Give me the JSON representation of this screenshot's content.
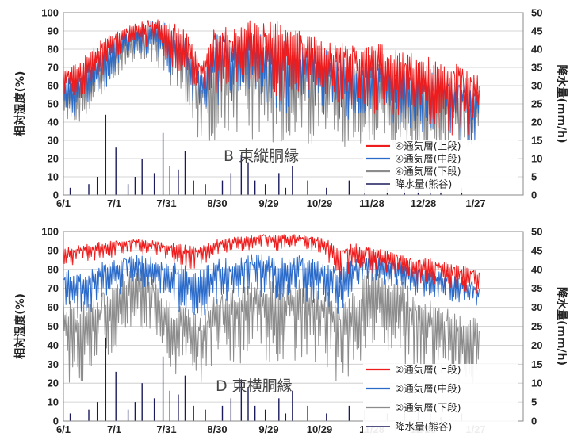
{
  "chart_data": [
    {
      "type": "line",
      "panel": "B",
      "annotation": "B 東縦胴縁",
      "ylabel": "相対湿度(%)",
      "y2label": "降水量(mm/h)",
      "x_ticks": [
        "6/1",
        "7/1",
        "7/31",
        "8/30",
        "9/29",
        "10/29",
        "11/28",
        "12/28",
        "1/27"
      ],
      "ylim": [
        0,
        100
      ],
      "y_ticks": [
        "0",
        "10",
        "20",
        "30",
        "40",
        "50",
        "60",
        "70",
        "80",
        "90",
        "100"
      ],
      "y2lim": [
        0,
        50
      ],
      "y2_ticks": [
        "0",
        "5",
        "10",
        "15",
        "20",
        "25",
        "30",
        "35",
        "40",
        "45",
        "50"
      ],
      "grid": true,
      "legend_position": "lower-right",
      "series": [
        {
          "name": "④通気層(上段)",
          "color": "#ee1c1c",
          "axis": "left",
          "upper": [
            70,
            74,
            82,
            88,
            92,
            95,
            97,
            96,
            90,
            72,
            95,
            90,
            96,
            94,
            96,
            92,
            88,
            86,
            84,
            82,
            84,
            82,
            80,
            77,
            76,
            74,
            72,
            66
          ],
          "lower": [
            55,
            50,
            60,
            68,
            80,
            82,
            80,
            70,
            60,
            56,
            52,
            56,
            62,
            58,
            52,
            50,
            54,
            50,
            48,
            46,
            44,
            44,
            40,
            38,
            36,
            32,
            30,
            30
          ]
        },
        {
          "name": "④通気層(中段)",
          "color": "#2a6ac9",
          "axis": "left",
          "upper": [
            64,
            68,
            76,
            84,
            90,
            94,
            96,
            94,
            86,
            66,
            92,
            86,
            90,
            88,
            88,
            84,
            80,
            80,
            78,
            74,
            76,
            74,
            72,
            70,
            68,
            66,
            64,
            60
          ],
          "lower": [
            46,
            42,
            52,
            60,
            74,
            78,
            74,
            64,
            52,
            48,
            46,
            50,
            56,
            52,
            46,
            44,
            48,
            44,
            42,
            40,
            40,
            40,
            36,
            34,
            32,
            30,
            28,
            28
          ]
        },
        {
          "name": "④通気層(下段)",
          "color": "#8c8c8c",
          "axis": "left",
          "upper": [
            60,
            62,
            70,
            80,
            88,
            92,
            94,
            92,
            84,
            64,
            92,
            84,
            90,
            88,
            88,
            84,
            80,
            78,
            76,
            72,
            74,
            72,
            70,
            68,
            66,
            64,
            62,
            60
          ],
          "lower": [
            42,
            40,
            48,
            56,
            70,
            74,
            70,
            60,
            48,
            24,
            28,
            30,
            32,
            28,
            26,
            34,
            28,
            24,
            26,
            28,
            24,
            30,
            22,
            24,
            22,
            20,
            20,
            20
          ]
        },
        {
          "name": "降水量(熊谷)",
          "color": "#1a1a5c",
          "axis": "right",
          "events": [
            [
              4,
              2
            ],
            [
              15,
              3
            ],
            [
              20,
              5
            ],
            [
              25,
              22
            ],
            [
              31,
              13
            ],
            [
              38,
              3
            ],
            [
              42,
              5
            ],
            [
              46,
              10
            ],
            [
              53,
              6
            ],
            [
              58,
              17
            ],
            [
              62,
              8
            ],
            [
              67,
              7
            ],
            [
              71,
              12
            ],
            [
              76,
              4
            ],
            [
              83,
              3
            ],
            [
              93,
              4
            ],
            [
              98,
              6
            ],
            [
              104,
              11
            ],
            [
              108,
              9
            ],
            [
              112,
              4
            ],
            [
              118,
              3
            ],
            [
              126,
              6
            ],
            [
              130,
              2
            ],
            [
              134,
              8
            ],
            [
              143,
              4
            ],
            [
              154,
              2
            ],
            [
              167,
              4
            ],
            [
              176,
              3
            ],
            [
              189,
              2
            ],
            [
              199,
              3
            ],
            [
              207,
              4
            ],
            [
              214,
              2
            ],
            [
              220,
              1
            ],
            [
              232,
              2
            ]
          ]
        }
      ]
    },
    {
      "type": "line",
      "panel": "D",
      "annotation": "D 東横胴縁",
      "ylabel": "相対湿度(%)",
      "y2label": "降水量(mm/h)",
      "x_ticks": [
        "6/1",
        "7/1",
        "7/31",
        "8/30",
        "9/29",
        "10/29",
        "11/28",
        "12/28",
        "1/27"
      ],
      "ylim": [
        0,
        100
      ],
      "y_ticks": [
        "0",
        "10",
        "20",
        "30",
        "40",
        "50",
        "60",
        "70",
        "80",
        "90",
        "100"
      ],
      "y2lim": [
        0,
        50
      ],
      "y2_ticks": [
        "0",
        "5",
        "10",
        "15",
        "20",
        "25",
        "30",
        "35",
        "40",
        "45",
        "50"
      ],
      "grid": true,
      "legend_position": "lower-right",
      "series": [
        {
          "name": "②通気層(上段)",
          "color": "#ee1c1c",
          "axis": "left",
          "upper": [
            92,
            93,
            94,
            95,
            96,
            96,
            95,
            94,
            93,
            92,
            96,
            97,
            98,
            99,
            98,
            99,
            98,
            97,
            92,
            94,
            92,
            90,
            88,
            86,
            86,
            84,
            82,
            80
          ],
          "lower": [
            80,
            82,
            84,
            86,
            88,
            88,
            86,
            82,
            78,
            80,
            88,
            88,
            90,
            92,
            90,
            92,
            90,
            88,
            70,
            80,
            78,
            76,
            74,
            72,
            72,
            70,
            68,
            66
          ]
        },
        {
          "name": "②通気層(中段)",
          "color": "#2a6ac9",
          "axis": "left",
          "upper": [
            80,
            78,
            82,
            86,
            88,
            88,
            86,
            84,
            82,
            80,
            86,
            86,
            88,
            88,
            86,
            88,
            86,
            84,
            82,
            86,
            88,
            86,
            84,
            82,
            80,
            78,
            76,
            72
          ],
          "lower": [
            56,
            54,
            58,
            62,
            68,
            70,
            66,
            60,
            56,
            54,
            62,
            62,
            64,
            66,
            62,
            66,
            62,
            60,
            56,
            70,
            74,
            72,
            70,
            66,
            64,
            62,
            60,
            58
          ]
        },
        {
          "name": "②通気層(下段)",
          "color": "#8c8c8c",
          "axis": "left",
          "upper": [
            68,
            62,
            66,
            72,
            78,
            84,
            74,
            64,
            60,
            56,
            68,
            70,
            74,
            76,
            72,
            76,
            74,
            70,
            64,
            68,
            82,
            80,
            74,
            68,
            64,
            60,
            58,
            56
          ],
          "lower": [
            22,
            18,
            24,
            30,
            42,
            48,
            36,
            24,
            20,
            20,
            28,
            30,
            30,
            32,
            26,
            32,
            30,
            26,
            20,
            26,
            40,
            38,
            30,
            24,
            22,
            20,
            20,
            20
          ]
        },
        {
          "name": "降水量(熊谷)",
          "color": "#1a1a5c",
          "axis": "right",
          "events": [
            [
              4,
              2
            ],
            [
              15,
              3
            ],
            [
              20,
              5
            ],
            [
              25,
              22
            ],
            [
              31,
              13
            ],
            [
              38,
              3
            ],
            [
              42,
              5
            ],
            [
              46,
              10
            ],
            [
              53,
              6
            ],
            [
              58,
              17
            ],
            [
              62,
              8
            ],
            [
              67,
              7
            ],
            [
              71,
              12
            ],
            [
              76,
              4
            ],
            [
              83,
              3
            ],
            [
              93,
              4
            ],
            [
              98,
              6
            ],
            [
              104,
              11
            ],
            [
              108,
              9
            ],
            [
              112,
              4
            ],
            [
              118,
              3
            ],
            [
              126,
              6
            ],
            [
              130,
              2
            ],
            [
              134,
              8
            ],
            [
              143,
              4
            ],
            [
              154,
              2
            ],
            [
              167,
              4
            ],
            [
              176,
              3
            ],
            [
              189,
              2
            ],
            [
              199,
              3
            ],
            [
              207,
              4
            ],
            [
              214,
              2
            ],
            [
              220,
              1
            ],
            [
              232,
              2
            ]
          ]
        }
      ]
    }
  ]
}
